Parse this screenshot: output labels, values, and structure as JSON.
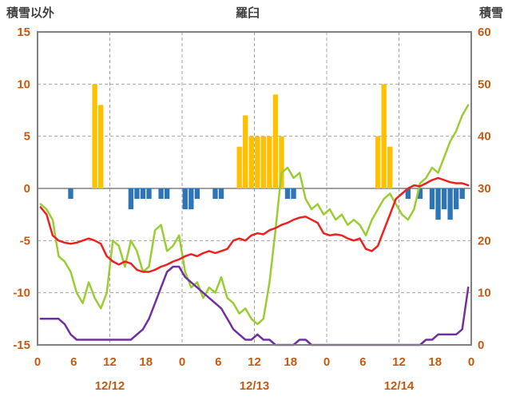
{
  "chart_data": {
    "type": "combo",
    "title": "羅臼",
    "left_axis": {
      "label": "積雪以外",
      "min": -15,
      "max": 15,
      "ticks": [
        15,
        10,
        5,
        0,
        -5,
        -10,
        -15
      ]
    },
    "right_axis": {
      "label": "積雪",
      "min": 0,
      "max": 60,
      "ticks": [
        60,
        50,
        40,
        30,
        20,
        10,
        0
      ]
    },
    "x_axis": {
      "hours": 72,
      "tick_interval": 6,
      "tick_labels": [
        "0",
        "6",
        "12",
        "18",
        "0",
        "6",
        "12",
        "18",
        "0",
        "6",
        "12",
        "18",
        "0"
      ],
      "day_labels": [
        "12/12",
        "12/13",
        "12/14"
      ]
    },
    "grid": {
      "vertical_hours": [
        12,
        24,
        36,
        48,
        60
      ],
      "horizontal_values": [
        10,
        5,
        -5,
        -10
      ],
      "zero_line": true
    },
    "colors": {
      "bar_positive": "#ffc000",
      "bar_negative": "#2e75b6",
      "red_line": "#ef2020",
      "green_line": "#9acd32",
      "purple_line": "#7030a0",
      "axis_text": "#c55a11",
      "title_text": "#3f3f3f",
      "grid": "#a6a6a6",
      "frame": "#808080"
    },
    "series": {
      "snowfall_bars": [
        [
          9,
          10
        ],
        [
          10,
          8
        ],
        [
          33,
          4
        ],
        [
          34,
          7
        ],
        [
          35,
          5
        ],
        [
          36,
          5
        ],
        [
          37,
          5
        ],
        [
          38,
          5
        ],
        [
          39,
          9
        ],
        [
          40,
          5
        ],
        [
          56,
          5
        ],
        [
          57,
          10
        ],
        [
          58,
          4
        ]
      ],
      "negative_bars": [
        [
          5,
          -1
        ],
        [
          15,
          -2
        ],
        [
          16,
          -1
        ],
        [
          17,
          -1
        ],
        [
          18,
          -1
        ],
        [
          20,
          -1
        ],
        [
          21,
          -1
        ],
        [
          24,
          -2
        ],
        [
          25,
          -2
        ],
        [
          26,
          -1
        ],
        [
          29,
          -1
        ],
        [
          30,
          -1
        ],
        [
          41,
          -1
        ],
        [
          42,
          -1
        ],
        [
          61,
          -1
        ],
        [
          63,
          -1
        ],
        [
          65,
          -2
        ],
        [
          66,
          -3
        ],
        [
          67,
          -2
        ],
        [
          68,
          -3
        ],
        [
          69,
          -2
        ],
        [
          70,
          -1
        ]
      ],
      "red_line_left_axis": [
        -1.8,
        -2.5,
        -4.5,
        -5,
        -5.2,
        -5.3,
        -5.2,
        -5,
        -4.8,
        -5,
        -5.3,
        -6.5,
        -7,
        -7.3,
        -7,
        -7.2,
        -7.8,
        -8,
        -8,
        -7.8,
        -7.5,
        -7.3,
        -7,
        -6.8,
        -6.5,
        -6.3,
        -6.5,
        -6.2,
        -6,
        -6.2,
        -6,
        -5.8,
        -5,
        -4.8,
        -5,
        -4.5,
        -4.3,
        -4.4,
        -4,
        -3.8,
        -3.5,
        -3.3,
        -3,
        -2.8,
        -2.7,
        -3,
        -3.3,
        -4.3,
        -4.5,
        -4.4,
        -4.5,
        -4.8,
        -5,
        -4.8,
        -5.8,
        -6,
        -5.5,
        -4,
        -2.5,
        -1,
        -0.5,
        0,
        0.3,
        0.2,
        0.5,
        0.8,
        1,
        0.8,
        0.6,
        0.5,
        0.5,
        0.3
      ],
      "green_line_left_axis": [
        -1.5,
        -2,
        -3,
        -6.5,
        -7,
        -8,
        -10,
        -11,
        -9,
        -10.5,
        -11.5,
        -10,
        -5,
        -5.5,
        -7.5,
        -5,
        -6,
        -8,
        -7.5,
        -4,
        -3.5,
        -6,
        -5.5,
        -4.5,
        -8,
        -9.5,
        -9,
        -10.5,
        -9.5,
        -10,
        -8.5,
        -10.5,
        -11,
        -12,
        -11.5,
        -12.5,
        -13,
        -12.5,
        -9,
        -4,
        1.5,
        2,
        1,
        1.5,
        -1,
        -2,
        -1.5,
        -2.5,
        -2,
        -3,
        -2.5,
        -3.5,
        -3,
        -3.5,
        -4.5,
        -3,
        -2,
        -1,
        -0.5,
        -1.5,
        -2.5,
        -3,
        -2,
        0.5,
        1,
        2,
        1.5,
        3,
        4.5,
        5.5,
        7,
        8
      ],
      "purple_line_right_axis": [
        5,
        5,
        5,
        5,
        4,
        2,
        1,
        1,
        1,
        1,
        1,
        1,
        1,
        1,
        1,
        1,
        2,
        3,
        5,
        8,
        11,
        14,
        15,
        15,
        13,
        12,
        11,
        10,
        9,
        8,
        7,
        5,
        3,
        2,
        1,
        1,
        2,
        1,
        1,
        0,
        0,
        0,
        0,
        1,
        1,
        0,
        0,
        0,
        0,
        0,
        0,
        0,
        0,
        0,
        0,
        0,
        0,
        0,
        0,
        0,
        0,
        0,
        0,
        0,
        1,
        1,
        2,
        2,
        2,
        2,
        3,
        11
      ]
    }
  }
}
